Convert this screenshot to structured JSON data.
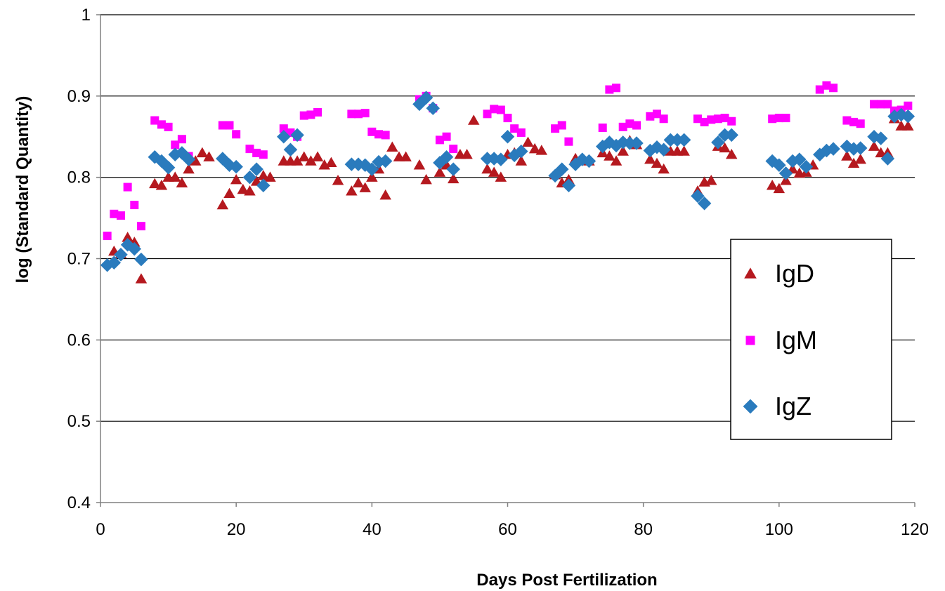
{
  "chart_data": {
    "type": "scatter",
    "title": "",
    "xlabel": "Days Post Fertilization",
    "ylabel": "log (Standard Quantity)",
    "xlim": [
      0,
      120
    ],
    "ylim": [
      0.4,
      1.0
    ],
    "xticks": [
      "0",
      "20",
      "40",
      "60",
      "80",
      "100",
      "120"
    ],
    "yticks": [
      "0.4",
      "0.5",
      "0.6",
      "0.7",
      "0.8",
      "0.9",
      "1"
    ],
    "grid": "horizontal",
    "legend_position": "right",
    "series": [
      {
        "name": "IgD",
        "marker": "triangle",
        "color": "#b5191f",
        "x": [
          2,
          3,
          4,
          5,
          6,
          8,
          9,
          10,
          11,
          12,
          13,
          14,
          15,
          16,
          18,
          19,
          20,
          21,
          22,
          23,
          24,
          25,
          27,
          28,
          29,
          30,
          31,
          32,
          33,
          34,
          35,
          37,
          38,
          39,
          40,
          41,
          42,
          43,
          44,
          45,
          47,
          48,
          50,
          51,
          52,
          53,
          54,
          55,
          57,
          58,
          59,
          60,
          61,
          62,
          63,
          64,
          65,
          67,
          68,
          69,
          70,
          71,
          72,
          74,
          75,
          76,
          77,
          78,
          79,
          81,
          82,
          83,
          84,
          85,
          86,
          88,
          89,
          90,
          91,
          92,
          93,
          99,
          100,
          101,
          102,
          103,
          104,
          105,
          110,
          111,
          112,
          114,
          115,
          116,
          117,
          118,
          119
        ],
        "y": [
          0.709,
          0.706,
          0.726,
          0.72,
          0.675,
          0.792,
          0.79,
          0.8,
          0.8,
          0.793,
          0.81,
          0.82,
          0.83,
          0.825,
          0.766,
          0.78,
          0.797,
          0.785,
          0.783,
          0.795,
          0.802,
          0.8,
          0.82,
          0.82,
          0.82,
          0.825,
          0.82,
          0.825,
          0.815,
          0.818,
          0.796,
          0.783,
          0.793,
          0.787,
          0.8,
          0.81,
          0.778,
          0.837,
          0.825,
          0.825,
          0.815,
          0.797,
          0.806,
          0.815,
          0.798,
          0.828,
          0.828,
          0.87,
          0.81,
          0.806,
          0.8,
          0.828,
          0.83,
          0.82,
          0.843,
          0.835,
          0.833,
          0.803,
          0.793,
          0.797,
          0.823,
          0.822,
          0.82,
          0.83,
          0.826,
          0.82,
          0.832,
          0.845,
          0.84,
          0.822,
          0.817,
          0.81,
          0.832,
          0.832,
          0.832,
          0.783,
          0.794,
          0.796,
          0.838,
          0.836,
          0.828,
          0.79,
          0.786,
          0.796,
          0.81,
          0.805,
          0.806,
          0.815,
          0.826,
          0.817,
          0.822,
          0.838,
          0.83,
          0.83,
          0.872,
          0.863,
          0.863
        ]
      },
      {
        "name": "IgM",
        "marker": "square",
        "color": "#ff00ff",
        "x": [
          1,
          2,
          3,
          4,
          5,
          6,
          8,
          9,
          10,
          11,
          12,
          13,
          18,
          19,
          20,
          22,
          23,
          24,
          27,
          28,
          29,
          30,
          31,
          32,
          37,
          38,
          39,
          40,
          41,
          42,
          47,
          48,
          49,
          50,
          51,
          52,
          57,
          58,
          59,
          60,
          61,
          62,
          67,
          68,
          69,
          74,
          75,
          76,
          77,
          78,
          79,
          81,
          82,
          83,
          88,
          89,
          90,
          91,
          92,
          93,
          99,
          100,
          101,
          106,
          107,
          108,
          110,
          111,
          112,
          114,
          115,
          116,
          117,
          118,
          119
        ],
        "y": [
          0.728,
          0.755,
          0.753,
          0.788,
          0.766,
          0.74,
          0.87,
          0.865,
          0.862,
          0.84,
          0.847,
          0.826,
          0.864,
          0.864,
          0.853,
          0.835,
          0.83,
          0.828,
          0.86,
          0.855,
          0.85,
          0.876,
          0.877,
          0.88,
          0.878,
          0.878,
          0.879,
          0.856,
          0.853,
          0.852,
          0.896,
          0.9,
          0.885,
          0.846,
          0.85,
          0.835,
          0.878,
          0.884,
          0.883,
          0.873,
          0.86,
          0.855,
          0.86,
          0.864,
          0.844,
          0.861,
          0.908,
          0.91,
          0.862,
          0.866,
          0.864,
          0.875,
          0.878,
          0.872,
          0.872,
          0.868,
          0.871,
          0.872,
          0.873,
          0.869,
          0.872,
          0.873,
          0.873,
          0.908,
          0.913,
          0.91,
          0.87,
          0.868,
          0.866,
          0.89,
          0.89,
          0.89,
          0.882,
          0.883,
          0.888
        ]
      },
      {
        "name": "IgZ",
        "marker": "diamond",
        "color": "#2a7bbd",
        "x": [
          1,
          2,
          3,
          4,
          5,
          6,
          8,
          9,
          10,
          11,
          12,
          13,
          18,
          19,
          20,
          22,
          23,
          24,
          27,
          28,
          29,
          37,
          38,
          39,
          40,
          41,
          42,
          47,
          48,
          49,
          50,
          51,
          52,
          57,
          58,
          59,
          60,
          61,
          62,
          67,
          68,
          69,
          70,
          71,
          72,
          74,
          75,
          76,
          77,
          78,
          79,
          81,
          82,
          83,
          84,
          85,
          86,
          88,
          89,
          91,
          92,
          93,
          99,
          100,
          101,
          102,
          103,
          104,
          106,
          107,
          108,
          110,
          111,
          112,
          114,
          115,
          116,
          117,
          118,
          119
        ],
        "y": [
          0.692,
          0.695,
          0.705,
          0.717,
          0.712,
          0.699,
          0.825,
          0.82,
          0.812,
          0.828,
          0.83,
          0.822,
          0.823,
          0.815,
          0.813,
          0.8,
          0.81,
          0.79,
          0.85,
          0.834,
          0.852,
          0.816,
          0.816,
          0.815,
          0.81,
          0.819,
          0.82,
          0.89,
          0.898,
          0.885,
          0.818,
          0.825,
          0.81,
          0.823,
          0.823,
          0.822,
          0.85,
          0.827,
          0.832,
          0.802,
          0.81,
          0.79,
          0.816,
          0.822,
          0.82,
          0.838,
          0.843,
          0.839,
          0.843,
          0.842,
          0.842,
          0.833,
          0.837,
          0.834,
          0.846,
          0.846,
          0.846,
          0.777,
          0.768,
          0.843,
          0.852,
          0.852,
          0.82,
          0.815,
          0.805,
          0.82,
          0.822,
          0.813,
          0.828,
          0.833,
          0.835,
          0.838,
          0.835,
          0.836,
          0.85,
          0.848,
          0.823,
          0.875,
          0.877,
          0.875
        ]
      }
    ]
  }
}
